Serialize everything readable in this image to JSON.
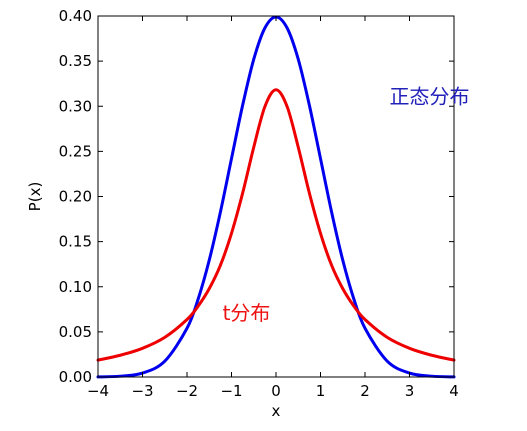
{
  "chart_data": {
    "type": "line",
    "title": "",
    "xlabel": "x",
    "ylabel": "P(x)",
    "xlim": [
      -4,
      4
    ],
    "ylim": [
      0,
      0.4
    ],
    "grid": false,
    "legend": "none",
    "xticks": [
      -4,
      -3,
      -2,
      -1,
      0,
      1,
      2,
      3,
      4
    ],
    "xtick_labels": [
      "−4",
      "−3",
      "−2",
      "−1",
      "0",
      "1",
      "2",
      "3",
      "4"
    ],
    "yticks": [
      0,
      0.05,
      0.1,
      0.15,
      0.2,
      0.25,
      0.3,
      0.35,
      0.4
    ],
    "ytick_labels": [
      "0.00",
      "0.05",
      "0.10",
      "0.15",
      "0.20",
      "0.25",
      "0.30",
      "0.35",
      "0.40"
    ],
    "series": [
      {
        "color": "#0000ee",
        "x": [
          -4,
          -3.5,
          -3,
          -2.5,
          -2,
          -1.75,
          -1.5,
          -1.25,
          -1,
          -0.75,
          -0.5,
          -0.25,
          0,
          0.25,
          0.5,
          0.75,
          1,
          1.25,
          1.5,
          1.75,
          2,
          2.5,
          3,
          3.5,
          4
        ],
        "y": [
          0.0001,
          0.0009,
          0.0044,
          0.0175,
          0.054,
          0.0863,
          0.1295,
          0.1826,
          0.242,
          0.3011,
          0.3521,
          0.3867,
          0.3989,
          0.3867,
          0.3521,
          0.3011,
          0.242,
          0.1826,
          0.1295,
          0.0863,
          0.054,
          0.0175,
          0.0044,
          0.0009,
          0.0001
        ]
      },
      {
        "color": "#ee0000",
        "x": [
          -4,
          -3.5,
          -3,
          -2.5,
          -2,
          -1.75,
          -1.5,
          -1.25,
          -1,
          -0.75,
          -0.5,
          -0.25,
          0,
          0.25,
          0.5,
          0.75,
          1,
          1.25,
          1.5,
          1.75,
          2,
          2.5,
          3,
          3.5,
          4
        ],
        "y": [
          0.0187,
          0.0241,
          0.0318,
          0.0439,
          0.0637,
          0.0785,
          0.0979,
          0.1237,
          0.1592,
          0.2037,
          0.2546,
          0.2996,
          0.3183,
          0.2996,
          0.2546,
          0.2037,
          0.1592,
          0.1237,
          0.0979,
          0.0785,
          0.0637,
          0.0439,
          0.0318,
          0.0241,
          0.0187
        ]
      }
    ],
    "annotations": [
      {
        "text": "正态分布",
        "x": 2.55,
        "y": 0.303,
        "color": "#2222bb"
      },
      {
        "text": "t分布",
        "x": -1.2,
        "y": 0.063,
        "color": "#ee1111"
      }
    ]
  }
}
